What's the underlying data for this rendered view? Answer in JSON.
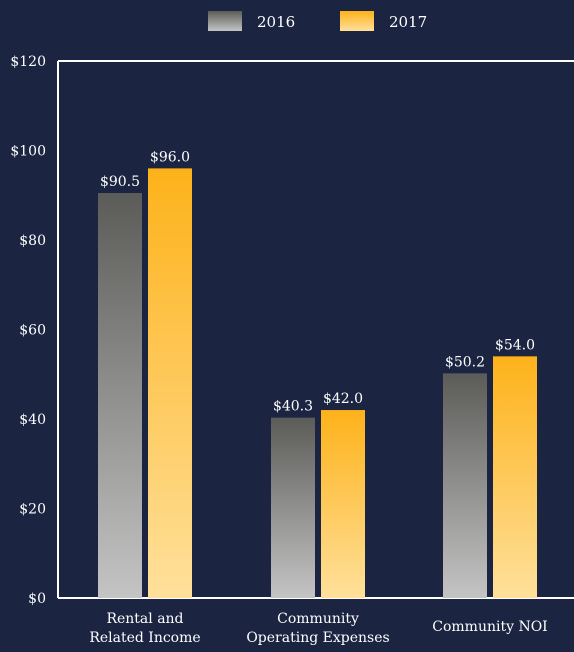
{
  "chart_data": {
    "type": "bar",
    "title": "",
    "xlabel": "",
    "ylabel": "",
    "categories": [
      [
        "Rental and",
        "Related Income"
      ],
      [
        "Community",
        "Operating Expenses"
      ],
      [
        "Community NOI"
      ]
    ],
    "series": [
      {
        "name": "2016",
        "values": [
          90.5,
          40.3,
          50.2
        ],
        "labels": [
          "$90.5",
          "$40.3",
          "$50.2"
        ]
      },
      {
        "name": "2017",
        "values": [
          96.0,
          42.0,
          54.0
        ],
        "labels": [
          "$96.0",
          "$42.0",
          "$54.0"
        ]
      }
    ],
    "ylim": [
      0,
      120
    ],
    "yticks": [
      0,
      20,
      40,
      60,
      80,
      100,
      120
    ],
    "ytick_labels": [
      "$0",
      "$20",
      "$40",
      "$60",
      "$80",
      "$100",
      "$120"
    ],
    "grid": false,
    "legend_position": "top-center"
  },
  "colors": {
    "background": "#1b2541",
    "axis": "#ffffff",
    "text": "#ffffff",
    "series_2016_top": "#5b5b58",
    "series_2016_bottom": "#c4c4c4",
    "series_2017_top": "#fdb21a",
    "series_2017_bottom": "#ffe09b"
  }
}
